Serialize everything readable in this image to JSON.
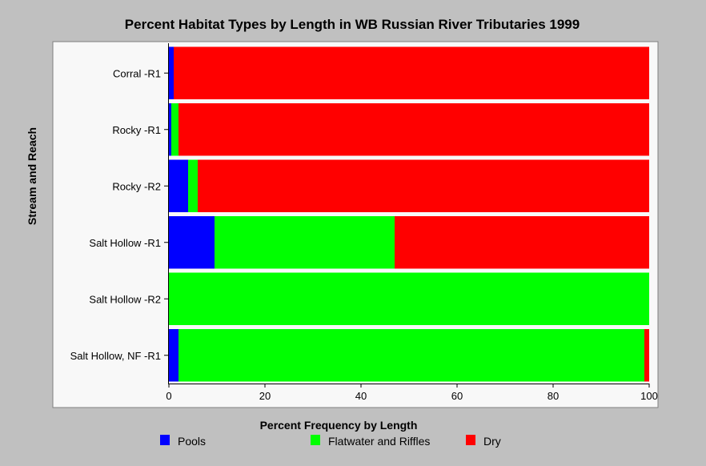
{
  "chart_data": {
    "type": "bar",
    "orientation": "horizontal",
    "stacked": true,
    "title": "Percent Habitat Types by Length in WB Russian River Tributaries 1999",
    "xlabel": "Percent Frequency by Length",
    "ylabel": "Stream and Reach",
    "xlim": [
      0,
      100
    ],
    "xticks": [
      "0",
      "20",
      "40",
      "60",
      "80",
      "100"
    ],
    "grid": false,
    "legend_position": "bottom",
    "categories": [
      "Corral -R1",
      "Rocky -R1",
      "Rocky -R2",
      "Salt Hollow -R1",
      "Salt Hollow -R2",
      "Salt Hollow, NF -R1"
    ],
    "series": [
      {
        "name": "Pools",
        "color": "#0000ff",
        "values": [
          1,
          0.5,
          4,
          9.5,
          0,
          2
        ]
      },
      {
        "name": "Flatwater and Riffles",
        "color": "#00ff00",
        "values": [
          0,
          1.5,
          2,
          37.5,
          100,
          97
        ]
      },
      {
        "name": "Dry",
        "color": "#ff0000",
        "values": [
          99,
          98,
          94,
          53,
          0,
          1
        ]
      }
    ]
  }
}
